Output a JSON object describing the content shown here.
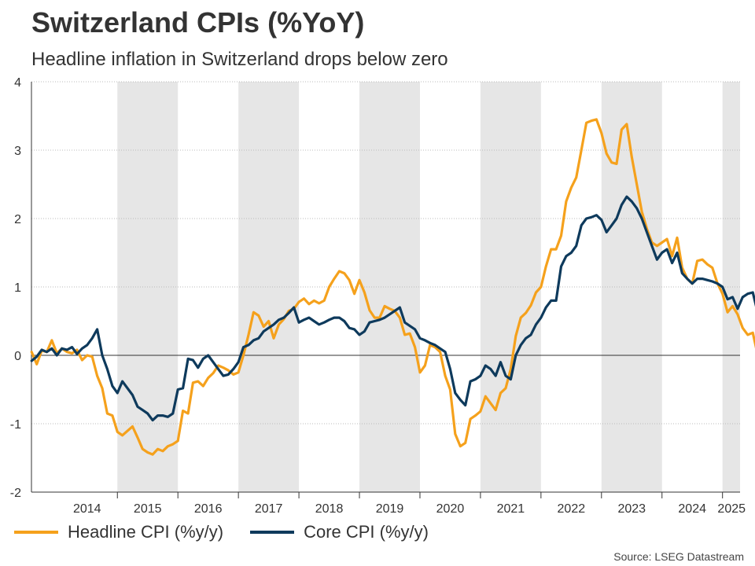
{
  "title": "Switzerland CPIs (%YoY)",
  "subtitle": "Headline inflation in Switzerland drops below zero",
  "source": "Source: LSEG Datastream",
  "colors": {
    "headline": "#F5A11C",
    "core": "#0E3A5C",
    "band": "#E6E6E6",
    "grid": "#BBBBBB"
  },
  "chart_data": {
    "type": "line",
    "title": "Switzerland CPIs (%YoY)",
    "x_unit": "year (monthly points)",
    "xlim": [
      2013.58,
      2025.29
    ],
    "ylim": [
      -2,
      4
    ],
    "yticks": [
      "-2",
      "-1",
      "0",
      "1",
      "2",
      "3",
      "4"
    ],
    "ytick_values": [
      -2,
      -1,
      0,
      1,
      2,
      3,
      4
    ],
    "xticks": [
      "2014",
      "2015",
      "2016",
      "2017",
      "2018",
      "2019",
      "2020",
      "2021",
      "2022",
      "2023",
      "2024",
      "2025"
    ],
    "xtick_positions": [
      2014.5,
      2015.5,
      2016.5,
      2017.5,
      2018.5,
      2019.5,
      2020.5,
      2021.5,
      2022.5,
      2023.5,
      2024.5,
      2025.15
    ],
    "shaded_years": [
      2015,
      2017,
      2019,
      2021,
      2023,
      2025
    ],
    "grid": "horizontal dotted",
    "legend_position": "bottom-left",
    "series": [
      {
        "name": "Headline CPI (%y/y)",
        "color": "#F5A11C",
        "points": [
          [
            2013.583,
            0.05
          ],
          [
            2013.667,
            -0.13
          ],
          [
            2013.75,
            0.07
          ],
          [
            2013.833,
            0.05
          ],
          [
            2013.917,
            0.22
          ],
          [
            2014.0,
            0.03
          ],
          [
            2014.083,
            0.1
          ],
          [
            2014.167,
            0.05
          ],
          [
            2014.25,
            0.03
          ],
          [
            2014.333,
            0.08
          ],
          [
            2014.417,
            -0.07
          ],
          [
            2014.5,
            -0.0
          ],
          [
            2014.583,
            -0.02
          ],
          [
            2014.667,
            -0.3
          ],
          [
            2014.75,
            -0.48
          ],
          [
            2014.833,
            -0.85
          ],
          [
            2014.917,
            -0.88
          ],
          [
            2015.0,
            -1.12
          ],
          [
            2015.083,
            -1.17
          ],
          [
            2015.25,
            -1.04
          ],
          [
            2015.333,
            -1.2
          ],
          [
            2015.417,
            -1.37
          ],
          [
            2015.5,
            -1.42
          ],
          [
            2015.583,
            -1.45
          ],
          [
            2015.667,
            -1.37
          ],
          [
            2015.75,
            -1.4
          ],
          [
            2015.833,
            -1.33
          ],
          [
            2015.917,
            -1.3
          ],
          [
            2016.0,
            -1.25
          ],
          [
            2016.083,
            -0.81
          ],
          [
            2016.167,
            -0.85
          ],
          [
            2016.25,
            -0.4
          ],
          [
            2016.333,
            -0.38
          ],
          [
            2016.417,
            -0.45
          ],
          [
            2016.5,
            -0.33
          ],
          [
            2016.583,
            -0.26
          ],
          [
            2016.667,
            -0.15
          ],
          [
            2016.75,
            -0.18
          ],
          [
            2016.833,
            -0.22
          ],
          [
            2016.917,
            -0.28
          ],
          [
            2017.0,
            -0.25
          ],
          [
            2017.083,
            0.0
          ],
          [
            2017.167,
            0.3
          ],
          [
            2017.25,
            0.63
          ],
          [
            2017.333,
            0.58
          ],
          [
            2017.417,
            0.42
          ],
          [
            2017.5,
            0.5
          ],
          [
            2017.583,
            0.25
          ],
          [
            2017.667,
            0.45
          ],
          [
            2017.75,
            0.53
          ],
          [
            2017.833,
            0.65
          ],
          [
            2017.917,
            0.68
          ],
          [
            2018.0,
            0.78
          ],
          [
            2018.083,
            0.83
          ],
          [
            2018.167,
            0.75
          ],
          [
            2018.25,
            0.8
          ],
          [
            2018.333,
            0.76
          ],
          [
            2018.417,
            0.8
          ],
          [
            2018.5,
            1.0
          ],
          [
            2018.583,
            1.12
          ],
          [
            2018.667,
            1.23
          ],
          [
            2018.75,
            1.2
          ],
          [
            2018.833,
            1.1
          ],
          [
            2018.917,
            0.9
          ],
          [
            2019.0,
            1.1
          ],
          [
            2019.083,
            0.92
          ],
          [
            2019.167,
            0.66
          ],
          [
            2019.25,
            0.55
          ],
          [
            2019.333,
            0.55
          ],
          [
            2019.417,
            0.72
          ],
          [
            2019.5,
            0.68
          ],
          [
            2019.583,
            0.65
          ],
          [
            2019.667,
            0.55
          ],
          [
            2019.75,
            0.3
          ],
          [
            2019.833,
            0.32
          ],
          [
            2019.917,
            0.12
          ],
          [
            2020.0,
            -0.25
          ],
          [
            2020.083,
            -0.15
          ],
          [
            2020.167,
            0.15
          ],
          [
            2020.25,
            0.12
          ],
          [
            2020.333,
            0.05
          ],
          [
            2020.417,
            -0.3
          ],
          [
            2020.5,
            -0.5
          ],
          [
            2020.583,
            -1.15
          ],
          [
            2020.667,
            -1.33
          ],
          [
            2020.75,
            -1.28
          ],
          [
            2020.833,
            -0.93
          ],
          [
            2020.917,
            -0.88
          ],
          [
            2021.0,
            -0.82
          ],
          [
            2021.083,
            -0.6
          ],
          [
            2021.167,
            -0.7
          ],
          [
            2021.25,
            -0.8
          ],
          [
            2021.333,
            -0.55
          ],
          [
            2021.417,
            -0.48
          ],
          [
            2021.5,
            -0.2
          ],
          [
            2021.583,
            0.28
          ],
          [
            2021.667,
            0.55
          ],
          [
            2021.75,
            0.62
          ],
          [
            2021.833,
            0.73
          ],
          [
            2021.917,
            0.92
          ],
          [
            2022.0,
            1.0
          ],
          [
            2022.083,
            1.3
          ],
          [
            2022.167,
            1.55
          ],
          [
            2022.25,
            1.55
          ],
          [
            2022.333,
            1.75
          ],
          [
            2022.417,
            2.25
          ],
          [
            2022.5,
            2.45
          ],
          [
            2022.583,
            2.6
          ],
          [
            2022.667,
            3.0
          ],
          [
            2022.75,
            3.4
          ],
          [
            2022.833,
            3.43
          ],
          [
            2022.917,
            3.45
          ],
          [
            2023.0,
            3.25
          ],
          [
            2023.083,
            2.95
          ],
          [
            2023.167,
            2.82
          ],
          [
            2023.25,
            2.8
          ],
          [
            2023.333,
            3.3
          ],
          [
            2023.417,
            3.38
          ],
          [
            2023.5,
            2.9
          ],
          [
            2023.583,
            2.5
          ],
          [
            2023.667,
            2.1
          ],
          [
            2023.75,
            1.85
          ],
          [
            2023.833,
            1.65
          ],
          [
            2023.917,
            1.6
          ],
          [
            2024.0,
            1.65
          ],
          [
            2024.083,
            1.7
          ],
          [
            2024.167,
            1.45
          ],
          [
            2024.25,
            1.72
          ],
          [
            2024.333,
            1.28
          ],
          [
            2024.417,
            1.12
          ],
          [
            2024.5,
            1.05
          ],
          [
            2024.583,
            1.38
          ],
          [
            2024.667,
            1.4
          ],
          [
            2024.75,
            1.33
          ],
          [
            2024.833,
            1.28
          ],
          [
            2024.917,
            1.05
          ],
          [
            2025.0,
            0.9
          ],
          [
            2025.083,
            0.63
          ],
          [
            2025.167,
            0.72
          ],
          [
            2025.25,
            0.6
          ],
          [
            2025.333,
            0.4
          ],
          [
            2025.417,
            0.3
          ],
          [
            2025.5,
            0.33
          ],
          [
            2025.583,
            -0.0
          ],
          [
            2025.667,
            -0.08
          ]
        ]
      },
      {
        "name": "Core CPI (%y/y)",
        "color": "#0E3A5C",
        "points": [
          [
            2013.583,
            -0.08
          ],
          [
            2013.667,
            -0.02
          ],
          [
            2013.75,
            0.08
          ],
          [
            2013.833,
            0.05
          ],
          [
            2013.917,
            0.1
          ],
          [
            2014.0,
            0.0
          ],
          [
            2014.083,
            0.1
          ],
          [
            2014.167,
            0.08
          ],
          [
            2014.25,
            0.12
          ],
          [
            2014.333,
            0.02
          ],
          [
            2014.417,
            0.1
          ],
          [
            2014.5,
            0.15
          ],
          [
            2014.583,
            0.25
          ],
          [
            2014.667,
            0.38
          ],
          [
            2014.75,
            0.0
          ],
          [
            2014.833,
            -0.2
          ],
          [
            2014.917,
            -0.45
          ],
          [
            2015.0,
            -0.55
          ],
          [
            2015.083,
            -0.38
          ],
          [
            2015.25,
            -0.58
          ],
          [
            2015.333,
            -0.75
          ],
          [
            2015.417,
            -0.8
          ],
          [
            2015.5,
            -0.85
          ],
          [
            2015.583,
            -0.95
          ],
          [
            2015.667,
            -0.88
          ],
          [
            2015.75,
            -0.88
          ],
          [
            2015.833,
            -0.9
          ],
          [
            2015.917,
            -0.85
          ],
          [
            2016.0,
            -0.5
          ],
          [
            2016.083,
            -0.48
          ],
          [
            2016.167,
            -0.05
          ],
          [
            2016.25,
            -0.07
          ],
          [
            2016.333,
            -0.18
          ],
          [
            2016.417,
            -0.05
          ],
          [
            2016.5,
            -0.0
          ],
          [
            2016.583,
            -0.1
          ],
          [
            2016.667,
            -0.2
          ],
          [
            2016.75,
            -0.3
          ],
          [
            2016.833,
            -0.28
          ],
          [
            2016.917,
            -0.2
          ],
          [
            2017.0,
            -0.1
          ],
          [
            2017.083,
            0.12
          ],
          [
            2017.167,
            0.15
          ],
          [
            2017.25,
            0.22
          ],
          [
            2017.333,
            0.25
          ],
          [
            2017.417,
            0.35
          ],
          [
            2017.5,
            0.4
          ],
          [
            2017.583,
            0.45
          ],
          [
            2017.667,
            0.52
          ],
          [
            2017.75,
            0.55
          ],
          [
            2017.833,
            0.62
          ],
          [
            2017.917,
            0.7
          ],
          [
            2018.0,
            0.48
          ],
          [
            2018.083,
            0.52
          ],
          [
            2018.167,
            0.55
          ],
          [
            2018.25,
            0.5
          ],
          [
            2018.333,
            0.45
          ],
          [
            2018.417,
            0.48
          ],
          [
            2018.5,
            0.52
          ],
          [
            2018.583,
            0.55
          ],
          [
            2018.667,
            0.55
          ],
          [
            2018.75,
            0.5
          ],
          [
            2018.833,
            0.4
          ],
          [
            2018.917,
            0.38
          ],
          [
            2019.0,
            0.3
          ],
          [
            2019.083,
            0.35
          ],
          [
            2019.167,
            0.48
          ],
          [
            2019.25,
            0.5
          ],
          [
            2019.333,
            0.52
          ],
          [
            2019.417,
            0.55
          ],
          [
            2019.5,
            0.6
          ],
          [
            2019.583,
            0.65
          ],
          [
            2019.667,
            0.7
          ],
          [
            2019.75,
            0.48
          ],
          [
            2019.833,
            0.43
          ],
          [
            2019.917,
            0.38
          ],
          [
            2020.0,
            0.25
          ],
          [
            2020.083,
            0.22
          ],
          [
            2020.167,
            0.18
          ],
          [
            2020.25,
            0.15
          ],
          [
            2020.333,
            0.1
          ],
          [
            2020.417,
            0.05
          ],
          [
            2020.5,
            -0.2
          ],
          [
            2020.583,
            -0.55
          ],
          [
            2020.667,
            -0.65
          ],
          [
            2020.75,
            -0.73
          ],
          [
            2020.833,
            -0.38
          ],
          [
            2020.917,
            -0.35
          ],
          [
            2021.0,
            -0.3
          ],
          [
            2021.083,
            -0.15
          ],
          [
            2021.167,
            -0.2
          ],
          [
            2021.25,
            -0.3
          ],
          [
            2021.333,
            -0.1
          ],
          [
            2021.417,
            -0.3
          ],
          [
            2021.5,
            -0.35
          ],
          [
            2021.583,
            0.0
          ],
          [
            2021.667,
            0.15
          ],
          [
            2021.75,
            0.25
          ],
          [
            2021.833,
            0.3
          ],
          [
            2021.917,
            0.45
          ],
          [
            2022.0,
            0.55
          ],
          [
            2022.083,
            0.7
          ],
          [
            2022.167,
            0.8
          ],
          [
            2022.25,
            0.8
          ],
          [
            2022.333,
            1.3
          ],
          [
            2022.417,
            1.45
          ],
          [
            2022.5,
            1.5
          ],
          [
            2022.583,
            1.6
          ],
          [
            2022.667,
            1.9
          ],
          [
            2022.75,
            2.0
          ],
          [
            2022.833,
            2.02
          ],
          [
            2022.917,
            2.05
          ],
          [
            2023.0,
            1.98
          ],
          [
            2023.083,
            1.8
          ],
          [
            2023.167,
            1.9
          ],
          [
            2023.25,
            2.0
          ],
          [
            2023.333,
            2.2
          ],
          [
            2023.417,
            2.32
          ],
          [
            2023.5,
            2.25
          ],
          [
            2023.583,
            2.15
          ],
          [
            2023.667,
            2.0
          ],
          [
            2023.75,
            1.8
          ],
          [
            2023.833,
            1.6
          ],
          [
            2023.917,
            1.4
          ],
          [
            2024.0,
            1.5
          ],
          [
            2024.083,
            1.55
          ],
          [
            2024.167,
            1.35
          ],
          [
            2024.25,
            1.5
          ],
          [
            2024.333,
            1.2
          ],
          [
            2024.417,
            1.12
          ],
          [
            2024.5,
            1.05
          ],
          [
            2024.583,
            1.12
          ],
          [
            2024.667,
            1.12
          ],
          [
            2024.75,
            1.1
          ],
          [
            2024.833,
            1.08
          ],
          [
            2024.917,
            1.05
          ],
          [
            2025.0,
            1.0
          ],
          [
            2025.083,
            0.82
          ],
          [
            2025.167,
            0.85
          ],
          [
            2025.25,
            0.68
          ],
          [
            2025.333,
            0.85
          ],
          [
            2025.417,
            0.9
          ],
          [
            2025.5,
            0.92
          ],
          [
            2025.583,
            0.62
          ],
          [
            2025.667,
            0.52
          ]
        ]
      }
    ]
  }
}
